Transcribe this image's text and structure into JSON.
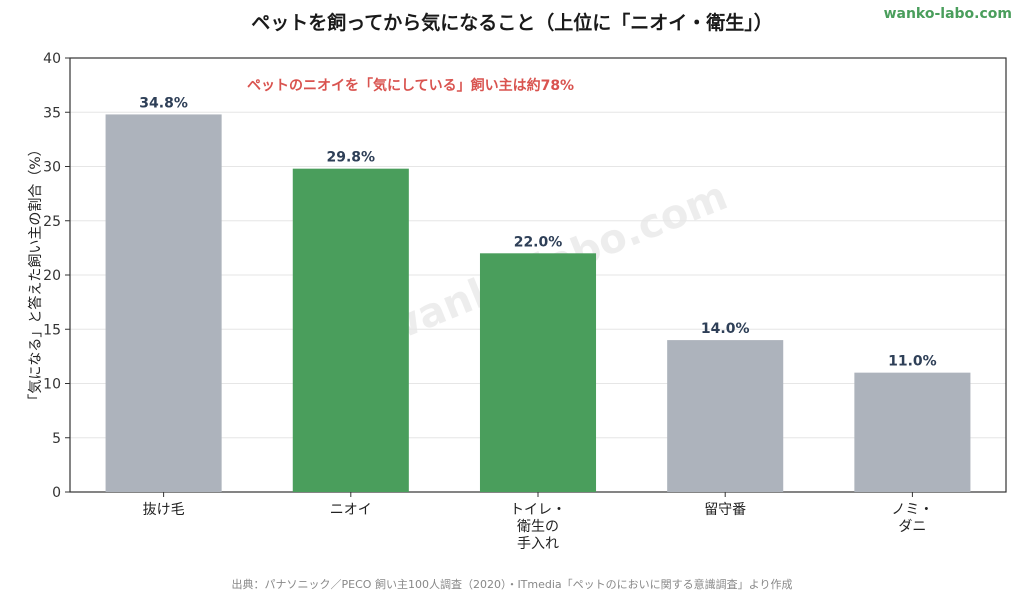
{
  "title": "ペットを飼ってから気になること（上位に「ニオイ・衛生」）",
  "brand": "wanko-labo.com",
  "watermark": "wanko-labo.com",
  "source": "出典：パナソニック／PECO 飼い主100人調査（2020）・ITmedia「ペットのにおいに関する意識調査」より作成",
  "chart_data": {
    "type": "bar",
    "title": "ペットを飼ってから気になること（上位に「ニオイ・衛生」）",
    "ylabel": "「気になる」と答えた飼い主の割合（%）",
    "xlabel": "",
    "ylim": [
      0,
      40
    ],
    "yticks": [
      0,
      5,
      10,
      15,
      20,
      25,
      30,
      35,
      40
    ],
    "grid": true,
    "annotation": "ペットのニオイを「気にしている」飼い主は約78%",
    "categories": [
      [
        "抜け毛"
      ],
      [
        "ニオイ"
      ],
      [
        "トイレ・",
        "衛生の",
        "手入れ"
      ],
      [
        "留守番"
      ],
      [
        "ノミ・",
        "ダニ"
      ]
    ],
    "values": [
      34.8,
      29.8,
      22.0,
      14.0,
      11.0
    ],
    "value_labels": [
      "34.8%",
      "29.8%",
      "22.0%",
      "14.0%",
      "11.0%"
    ],
    "bar_colors": [
      "#adb3bc",
      "#4a9e5c",
      "#4a9e5c",
      "#adb3bc",
      "#adb3bc"
    ],
    "colors": {
      "highlight": "#4a9e5c",
      "neutral": "#adb3bc",
      "annotation": "#d9534f",
      "value_label": "#2e3f57",
      "grid": "#e6e6e6"
    }
  }
}
